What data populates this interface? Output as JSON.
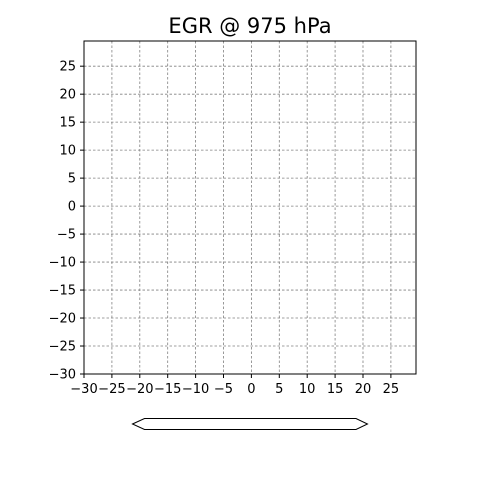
{
  "chart_data": {
    "type": "heatmap",
    "title": "EGR @ 975 hPa",
    "xlabel": "",
    "ylabel": "",
    "xlim": [
      -30,
      29.5
    ],
    "ylim": [
      -30,
      29.5
    ],
    "x_ticks": [
      -30,
      -25,
      -20,
      -15,
      -10,
      -5,
      0,
      5,
      10,
      15,
      20,
      25
    ],
    "y_ticks": [
      -30,
      -25,
      -20,
      -15,
      -10,
      -5,
      0,
      5,
      10,
      15,
      20,
      25
    ],
    "x_tick_labels": [
      "−30",
      "−25",
      "−20",
      "−15",
      "−10",
      "−5",
      "0",
      "5",
      "10",
      "15",
      "20",
      "25"
    ],
    "y_tick_labels": [
      "−30",
      "−25",
      "−20",
      "−15",
      "−10",
      "−5",
      "0",
      "5",
      "10",
      "15",
      "20",
      "25"
    ],
    "grid": true,
    "grid_style": "dashed",
    "grid_color": "#808080",
    "values": [],
    "colorbar": {
      "orientation": "horizontal",
      "extend": "both",
      "ticks": []
    }
  }
}
